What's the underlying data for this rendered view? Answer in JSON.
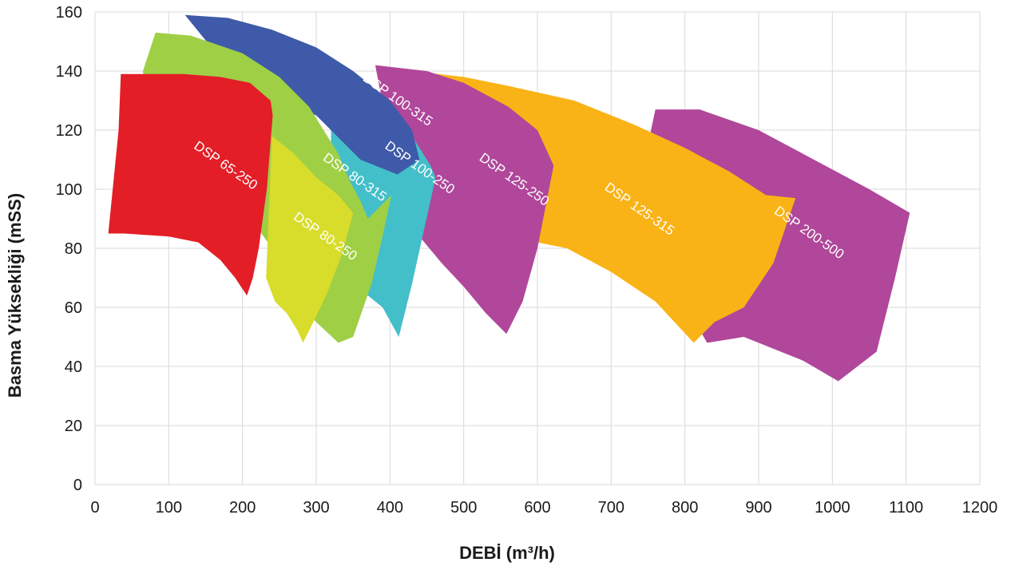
{
  "chart_data": {
    "type": "area",
    "xlabel": "DEBİ (m³/h)",
    "ylabel": "Basma Yüksekliği (mSS)",
    "xlim": [
      0,
      1200
    ],
    "ylim": [
      0,
      160
    ],
    "x_ticks": [
      0,
      100,
      200,
      300,
      400,
      500,
      600,
      700,
      800,
      900,
      1000,
      1100,
      1200
    ],
    "y_ticks": [
      0,
      20,
      40,
      60,
      80,
      100,
      120,
      140,
      160
    ],
    "grid": true,
    "regions": [
      {
        "name": "DSP 200-500",
        "color": "#b0479a",
        "polygon": [
          [
            760,
            127
          ],
          [
            820,
            127
          ],
          [
            900,
            120
          ],
          [
            990,
            108
          ],
          [
            1050,
            100
          ],
          [
            1105,
            92
          ],
          [
            1085,
            70
          ],
          [
            1060,
            45
          ],
          [
            1008,
            35
          ],
          [
            960,
            42
          ],
          [
            880,
            50
          ],
          [
            830,
            48
          ],
          [
            780,
            70
          ],
          [
            720,
            80
          ]
        ]
      },
      {
        "name": "DSP 125-315",
        "color": "#f9b316",
        "polygon": [
          [
            430,
            140
          ],
          [
            500,
            138
          ],
          [
            560,
            135
          ],
          [
            650,
            130
          ],
          [
            730,
            122
          ],
          [
            800,
            114
          ],
          [
            860,
            106
          ],
          [
            910,
            98
          ],
          [
            950,
            97
          ],
          [
            920,
            75
          ],
          [
            880,
            60
          ],
          [
            840,
            55
          ],
          [
            812,
            48
          ],
          [
            760,
            62
          ],
          [
            700,
            72
          ],
          [
            640,
            80
          ],
          [
            560,
            84
          ]
        ]
      },
      {
        "name": "DSP 125-250",
        "color": "#b0479a",
        "polygon": [
          [
            380,
            142
          ],
          [
            450,
            140
          ],
          [
            500,
            136
          ],
          [
            560,
            128
          ],
          [
            600,
            120
          ],
          [
            622,
            108
          ],
          [
            600,
            80
          ],
          [
            580,
            62
          ],
          [
            558,
            51
          ],
          [
            530,
            58
          ],
          [
            500,
            67
          ],
          [
            470,
            75
          ],
          [
            420,
            90
          ]
        ]
      },
      {
        "name": "DSP 100-250",
        "color": "#43bfc9",
        "polygon": [
          [
            320,
            132
          ],
          [
            390,
            128
          ],
          [
            430,
            118
          ],
          [
            455,
            108
          ],
          [
            462,
            104
          ],
          [
            445,
            85
          ],
          [
            430,
            68
          ],
          [
            412,
            50
          ],
          [
            390,
            60
          ],
          [
            350,
            68
          ],
          [
            320,
            80
          ]
        ]
      },
      {
        "name": "DSP 100-315",
        "color": "#3e5aa8",
        "polygon": [
          [
            122,
            159
          ],
          [
            180,
            158
          ],
          [
            240,
            154
          ],
          [
            300,
            148
          ],
          [
            350,
            140
          ],
          [
            400,
            130
          ],
          [
            430,
            120
          ],
          [
            440,
            110
          ],
          [
            410,
            105
          ],
          [
            360,
            110
          ],
          [
            300,
            125
          ],
          [
            200,
            135
          ]
        ]
      },
      {
        "name": "DSP 80-315",
        "color": "#9fcf45",
        "polygon": [
          [
            82,
            153
          ],
          [
            130,
            152
          ],
          [
            200,
            146
          ],
          [
            250,
            138
          ],
          [
            290,
            128
          ],
          [
            310,
            120
          ],
          [
            330,
            112
          ],
          [
            345,
            103
          ],
          [
            360,
            96
          ],
          [
            370,
            90
          ],
          [
            402,
            98
          ],
          [
            388,
            82
          ],
          [
            375,
            68
          ],
          [
            350,
            50
          ],
          [
            330,
            48
          ],
          [
            300,
            55
          ],
          [
            280,
            60
          ],
          [
            260,
            65
          ],
          [
            240,
            80
          ],
          [
            200,
            94
          ],
          [
            160,
            97
          ],
          [
            120,
            99
          ],
          [
            84,
            100
          ],
          [
            65,
            140
          ]
        ]
      },
      {
        "name": "DSP 80-250",
        "color": "#d8dc2b",
        "polygon": [
          [
            240,
            118
          ],
          [
            270,
            112
          ],
          [
            300,
            104
          ],
          [
            330,
            98
          ],
          [
            350,
            92
          ],
          [
            335,
            78
          ],
          [
            315,
            65
          ],
          [
            300,
            57
          ],
          [
            282,
            48
          ],
          [
            275,
            52
          ],
          [
            260,
            58
          ],
          [
            244,
            62
          ],
          [
            232,
            70
          ]
        ]
      },
      {
        "name": "DSP 65-250",
        "color": "#e31e27",
        "polygon": [
          [
            35,
            139
          ],
          [
            120,
            139
          ],
          [
            170,
            138
          ],
          [
            210,
            136
          ],
          [
            238,
            130
          ],
          [
            241,
            125
          ],
          [
            233,
            100
          ],
          [
            222,
            80
          ],
          [
            214,
            70
          ],
          [
            206,
            64
          ],
          [
            190,
            70
          ],
          [
            170,
            76
          ],
          [
            140,
            82
          ],
          [
            100,
            84
          ],
          [
            40,
            85
          ],
          [
            18,
            85
          ],
          [
            32,
            120
          ]
        ]
      }
    ],
    "labels": [
      {
        "text": "DSP 100-315",
        "x": 362,
        "y": 137,
        "angle": 35
      },
      {
        "text": "DSP 65-250",
        "x": 133,
        "y": 114,
        "angle": 35
      },
      {
        "text": "DSP 80-315",
        "x": 308,
        "y": 110,
        "angle": 35
      },
      {
        "text": "DSP 100-250",
        "x": 392,
        "y": 114,
        "angle": 35
      },
      {
        "text": "DSP 125-250",
        "x": 520,
        "y": 110,
        "angle": 35
      },
      {
        "text": "DSP 80-250",
        "x": 268,
        "y": 90,
        "angle": 35
      },
      {
        "text": "DSP 125-315",
        "x": 690,
        "y": 100,
        "angle": 35
      },
      {
        "text": "DSP 200-500",
        "x": 920,
        "y": 92,
        "angle": 35
      }
    ]
  }
}
